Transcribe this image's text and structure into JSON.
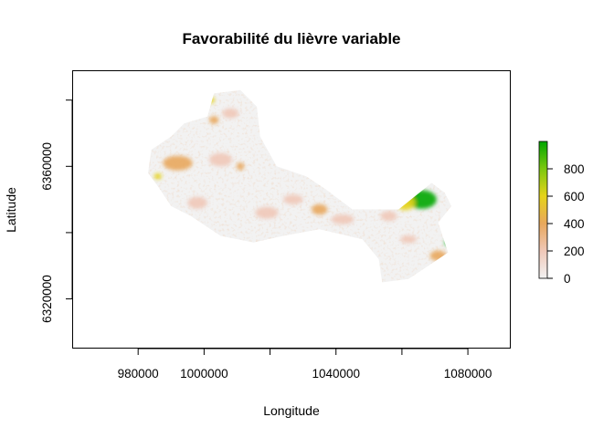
{
  "chart_data": {
    "type": "heatmap",
    "title": "Favorabilité du lièvre variable",
    "xlabel": "Longitude",
    "ylabel": "Latitude",
    "x_ticks": [
      980000,
      1000000,
      1040000,
      1080000
    ],
    "x_tick_labels": [
      "980000",
      "1000000",
      "1040000",
      "1080000"
    ],
    "y_ticks": [
      6320000,
      6360000
    ],
    "y_tick_labels": [
      "6320000",
      "6360000"
    ],
    "xlim": [
      960000,
      1093000
    ],
    "ylim": [
      6305000,
      6389000
    ],
    "legend": {
      "placement": "right",
      "min": 0,
      "max": 1000,
      "ticks": [
        0,
        200,
        400,
        600,
        800
      ],
      "tick_labels": [
        "0",
        "200",
        "400",
        "600",
        "800"
      ],
      "colors": [
        "#f2f2f2",
        "#f0c8b8",
        "#e8a75c",
        "#e6d31a",
        "#7cc80e",
        "#00a600"
      ]
    },
    "grid": false,
    "region_outline": [
      [
        984000,
        6365000
      ],
      [
        990000,
        6369000
      ],
      [
        994000,
        6373000
      ],
      [
        1001000,
        6375000
      ],
      [
        1003000,
        6382000
      ],
      [
        1011000,
        6383000
      ],
      [
        1016000,
        6378000
      ],
      [
        1017000,
        6369000
      ],
      [
        1022000,
        6360000
      ],
      [
        1031000,
        6357000
      ],
      [
        1037000,
        6353000
      ],
      [
        1045000,
        6347000
      ],
      [
        1059000,
        6347000
      ],
      [
        1064000,
        6351000
      ],
      [
        1069000,
        6355000
      ],
      [
        1073000,
        6352000
      ],
      [
        1075000,
        6348000
      ],
      [
        1071000,
        6343000
      ],
      [
        1074000,
        6334000
      ],
      [
        1068000,
        6330000
      ],
      [
        1062000,
        6326000
      ],
      [
        1054000,
        6325000
      ],
      [
        1053000,
        6332000
      ],
      [
        1048000,
        6338000
      ],
      [
        1035000,
        6341000
      ],
      [
        1024000,
        6339000
      ],
      [
        1015000,
        6337000
      ],
      [
        1005000,
        6339000
      ],
      [
        996000,
        6345000
      ],
      [
        990000,
        6348000
      ],
      [
        986000,
        6354000
      ],
      [
        983000,
        6358000
      ]
    ],
    "hotspots": [
      {
        "x": 1066000,
        "y": 6350000,
        "rx": 4500,
        "ry": 2800,
        "value": 950
      },
      {
        "x": 1074000,
        "y": 6337000,
        "rx": 1000,
        "ry": 1000,
        "value": 900
      },
      {
        "x": 1061000,
        "y": 6349000,
        "rx": 3000,
        "ry": 2200,
        "value": 620
      },
      {
        "x": 1002000,
        "y": 6380000,
        "rx": 1200,
        "ry": 1000,
        "value": 650
      },
      {
        "x": 1035000,
        "y": 6347000,
        "rx": 2400,
        "ry": 1600,
        "value": 420
      },
      {
        "x": 992000,
        "y": 6361000,
        "rx": 4500,
        "ry": 2200,
        "value": 300
      },
      {
        "x": 1005000,
        "y": 6362000,
        "rx": 3500,
        "ry": 2000,
        "value": 280
      },
      {
        "x": 1011000,
        "y": 6360000,
        "rx": 1200,
        "ry": 1200,
        "value": 450
      },
      {
        "x": 986000,
        "y": 6357000,
        "rx": 1200,
        "ry": 900,
        "value": 500
      },
      {
        "x": 1003000,
        "y": 6374000,
        "rx": 1400,
        "ry": 1200,
        "value": 380
      },
      {
        "x": 1027000,
        "y": 6350000,
        "rx": 3000,
        "ry": 1500,
        "value": 230
      },
      {
        "x": 1042000,
        "y": 6344000,
        "rx": 3500,
        "ry": 1500,
        "value": 180
      },
      {
        "x": 1019000,
        "y": 6346000,
        "rx": 3500,
        "ry": 1800,
        "value": 200
      },
      {
        "x": 998000,
        "y": 6349000,
        "rx": 3000,
        "ry": 1800,
        "value": 230
      },
      {
        "x": 1071000,
        "y": 6333000,
        "rx": 2500,
        "ry": 1600,
        "value": 300
      },
      {
        "x": 1056000,
        "y": 6345000,
        "rx": 2500,
        "ry": 1500,
        "value": 200
      },
      {
        "x": 1008000,
        "y": 6376000,
        "rx": 2500,
        "ry": 1500,
        "value": 120
      },
      {
        "x": 1062000,
        "y": 6338000,
        "rx": 2500,
        "ry": 1200,
        "value": 150
      }
    ]
  }
}
